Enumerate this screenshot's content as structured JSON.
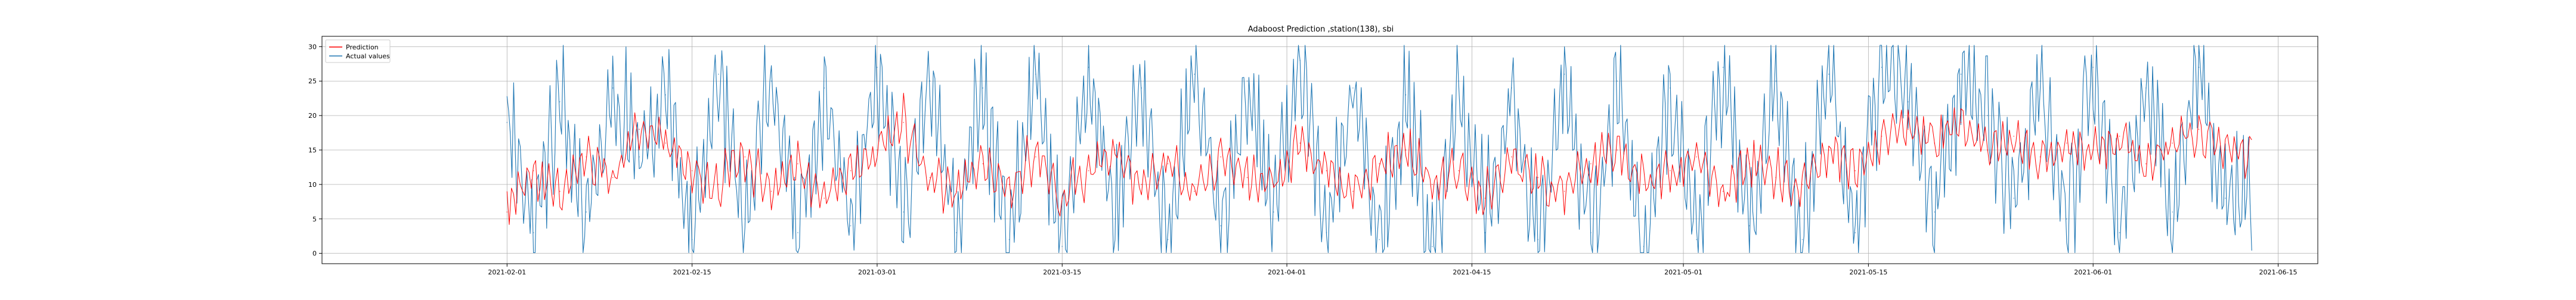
{
  "chart_data": {
    "type": "line",
    "title": "Adaboost Prediction ,station(138), sbi",
    "xlabel": "",
    "ylabel": "",
    "x_range": [
      "2021-01-18",
      "2021-06-18"
    ],
    "x_ticks": [
      "2021-02-01",
      "2021-02-15",
      "2021-03-01",
      "2021-03-15",
      "2021-04-01",
      "2021-04-15",
      "2021-05-01",
      "2021-05-15",
      "2021-06-01",
      "2021-06-15"
    ],
    "ylim": [
      -1.5,
      31.5
    ],
    "y_ticks": [
      0,
      5,
      10,
      15,
      20,
      25,
      30
    ],
    "grid": true,
    "legend": "top-left",
    "series": [
      {
        "name": "Prediction",
        "color": "#ff0000",
        "x": [
          "2021-02-01",
          "2021-02-03",
          "2021-02-05",
          "2021-02-07",
          "2021-02-09",
          "2021-02-11",
          "2021-02-13",
          "2021-02-15",
          "2021-02-17",
          "2021-02-19",
          "2021-02-21",
          "2021-02-23",
          "2021-02-25",
          "2021-02-27",
          "2021-03-01",
          "2021-03-03",
          "2021-03-05",
          "2021-03-07",
          "2021-03-09",
          "2021-03-11",
          "2021-03-13",
          "2021-03-15",
          "2021-03-17",
          "2021-03-19",
          "2021-03-21",
          "2021-03-23",
          "2021-03-25",
          "2021-03-27",
          "2021-03-29",
          "2021-03-31",
          "2021-04-02",
          "2021-04-04",
          "2021-04-06",
          "2021-04-08",
          "2021-04-10",
          "2021-04-12",
          "2021-04-14",
          "2021-04-16",
          "2021-04-18",
          "2021-04-20",
          "2021-04-22",
          "2021-04-24",
          "2021-04-26",
          "2021-04-28",
          "2021-04-30",
          "2021-05-02",
          "2021-05-04",
          "2021-05-06",
          "2021-05-08",
          "2021-05-10",
          "2021-05-12",
          "2021-05-14",
          "2021-05-16",
          "2021-05-18",
          "2021-05-20",
          "2021-05-22",
          "2021-05-24",
          "2021-05-26",
          "2021-05-28",
          "2021-05-30",
          "2021-06-01",
          "2021-06-03",
          "2021-06-05",
          "2021-06-07",
          "2021-06-09",
          "2021-06-11"
        ],
        "values": [
          6,
          12,
          9,
          14,
          11,
          18,
          16,
          12,
          10,
          14,
          9,
          13,
          8,
          12,
          15,
          19,
          11,
          9,
          13,
          10,
          14,
          8,
          12,
          15,
          10,
          13,
          9,
          14,
          11,
          10,
          16,
          12,
          9,
          13,
          15,
          10,
          12,
          8,
          14,
          11,
          9,
          13,
          15,
          10,
          12,
          14,
          9,
          13,
          11,
          10,
          15,
          12,
          17,
          18,
          16,
          19,
          15,
          17,
          14,
          16,
          15,
          17,
          13,
          16,
          18,
          15
        ]
      },
      {
        "name": "Actual values",
        "color": "#1f77b4",
        "x": [
          "2021-02-01",
          "2021-02-03",
          "2021-02-05",
          "2021-02-07",
          "2021-02-09",
          "2021-02-11",
          "2021-02-13",
          "2021-02-15",
          "2021-02-17",
          "2021-02-19",
          "2021-02-21",
          "2021-02-23",
          "2021-02-25",
          "2021-02-27",
          "2021-03-01",
          "2021-03-03",
          "2021-03-05",
          "2021-03-07",
          "2021-03-09",
          "2021-03-11",
          "2021-03-13",
          "2021-03-15",
          "2021-03-17",
          "2021-03-19",
          "2021-03-21",
          "2021-03-23",
          "2021-03-25",
          "2021-03-27",
          "2021-03-29",
          "2021-03-31",
          "2021-04-02",
          "2021-04-04",
          "2021-04-06",
          "2021-04-08",
          "2021-04-10",
          "2021-04-12",
          "2021-04-14",
          "2021-04-16",
          "2021-04-18",
          "2021-04-20",
          "2021-04-22",
          "2021-04-24",
          "2021-04-26",
          "2021-04-28",
          "2021-04-30",
          "2021-05-02",
          "2021-05-04",
          "2021-05-06",
          "2021-05-08",
          "2021-05-10",
          "2021-05-12",
          "2021-05-14",
          "2021-05-16",
          "2021-05-18",
          "2021-05-20",
          "2021-05-22",
          "2021-05-24",
          "2021-05-26",
          "2021-05-28",
          "2021-05-30",
          "2021-06-01",
          "2021-06-03",
          "2021-06-05",
          "2021-06-07",
          "2021-06-09",
          "2021-06-11"
        ],
        "values": [
          19,
          3,
          22,
          6,
          24,
          14,
          23,
          2,
          26,
          5,
          25,
          3,
          24,
          4,
          27,
          6,
          25,
          3,
          24,
          2,
          26,
          1,
          27,
          5,
          24,
          2,
          26,
          4,
          25,
          6,
          28,
          3,
          24,
          2,
          23,
          1,
          25,
          3,
          24,
          2,
          26,
          3,
          25,
          1,
          24,
          2,
          27,
          4,
          25,
          2,
          26,
          3,
          27,
          22,
          6,
          26,
          20,
          8,
          25,
          5,
          27,
          3,
          24,
          6,
          27,
          8
        ]
      }
    ]
  }
}
